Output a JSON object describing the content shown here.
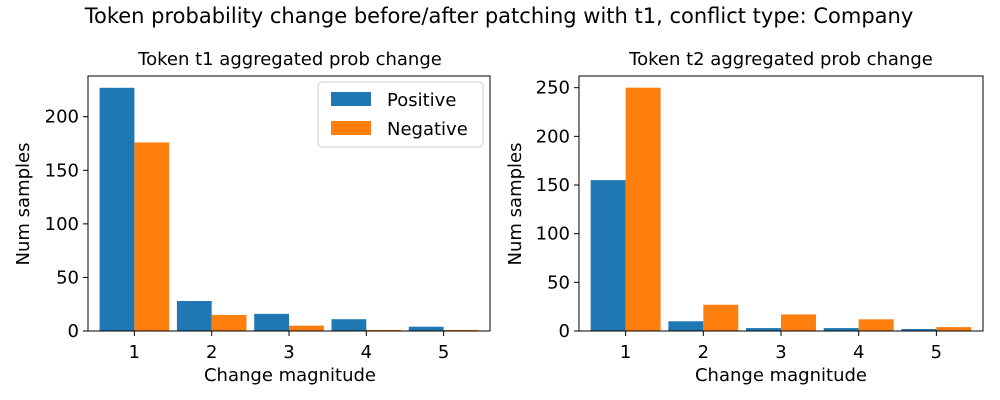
{
  "suptitle": "Token probability change before/after patching with t1, conflict type: Company",
  "colors": {
    "positive": "#1f77b4",
    "negative": "#ff7f0e"
  },
  "chart_data": [
    {
      "type": "bar",
      "title": "Token t1 aggregated prob change",
      "xlabel": "Change magnitude",
      "ylabel": "Num samples",
      "categories": [
        "1",
        "2",
        "3",
        "4",
        "5"
      ],
      "series": [
        {
          "name": "Positive",
          "values": [
            227,
            28,
            16,
            11,
            4
          ]
        },
        {
          "name": "Negative",
          "values": [
            176,
            15,
            5,
            1,
            1
          ]
        }
      ],
      "ylim": [
        0,
        238
      ],
      "yticks": [
        0,
        50,
        100,
        150,
        200
      ],
      "legend": "top-right"
    },
    {
      "type": "bar",
      "title": "Token t2 aggregated prob change",
      "xlabel": "Change magnitude",
      "ylabel": "Num samples",
      "categories": [
        "1",
        "2",
        "3",
        "4",
        "5"
      ],
      "series": [
        {
          "name": "Positive",
          "values": [
            155,
            10,
            3,
            3,
            2
          ]
        },
        {
          "name": "Negative",
          "values": [
            250,
            27,
            17,
            12,
            4
          ]
        }
      ],
      "ylim": [
        0,
        262
      ],
      "yticks": [
        0,
        50,
        100,
        150,
        200,
        250
      ],
      "legend": "none"
    }
  ]
}
